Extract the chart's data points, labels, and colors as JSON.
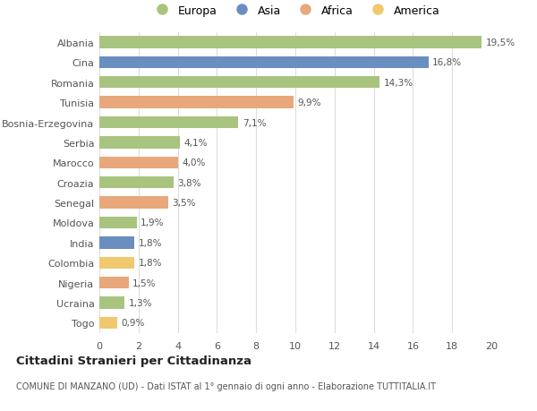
{
  "categories": [
    "Albania",
    "Cina",
    "Romania",
    "Tunisia",
    "Bosnia-Erzegovina",
    "Serbia",
    "Marocco",
    "Croazia",
    "Senegal",
    "Moldova",
    "India",
    "Colombia",
    "Nigeria",
    "Ucraina",
    "Togo"
  ],
  "values": [
    19.5,
    16.8,
    14.3,
    9.9,
    7.1,
    4.1,
    4.0,
    3.8,
    3.5,
    1.9,
    1.8,
    1.8,
    1.5,
    1.3,
    0.9
  ],
  "labels": [
    "19,5%",
    "16,8%",
    "14,3%",
    "9,9%",
    "7,1%",
    "4,1%",
    "4,0%",
    "3,8%",
    "3,5%",
    "1,9%",
    "1,8%",
    "1,8%",
    "1,5%",
    "1,3%",
    "0,9%"
  ],
  "bar_colors": [
    "#a8c47f",
    "#6a8ebf",
    "#a8c47f",
    "#e8a87c",
    "#a8c47f",
    "#a8c47f",
    "#e8a87c",
    "#a8c47f",
    "#e8a87c",
    "#a8c47f",
    "#6a8ebf",
    "#f0c96e",
    "#e8a87c",
    "#a8c47f",
    "#f0c96e"
  ],
  "legend_labels": [
    "Europa",
    "Asia",
    "Africa",
    "America"
  ],
  "legend_colors": [
    "#a8c47f",
    "#6a8ebf",
    "#e8a87c",
    "#f0c96e"
  ],
  "xlim": [
    0,
    20
  ],
  "xticks": [
    0,
    2,
    4,
    6,
    8,
    10,
    12,
    14,
    16,
    18,
    20
  ],
  "title": "Cittadini Stranieri per Cittadinanza",
  "subtitle": "COMUNE DI MANZANO (UD) - Dati ISTAT al 1° gennaio di ogni anno - Elaborazione TUTTITALIA.IT",
  "background_color": "#ffffff",
  "grid_color": "#dddddd"
}
